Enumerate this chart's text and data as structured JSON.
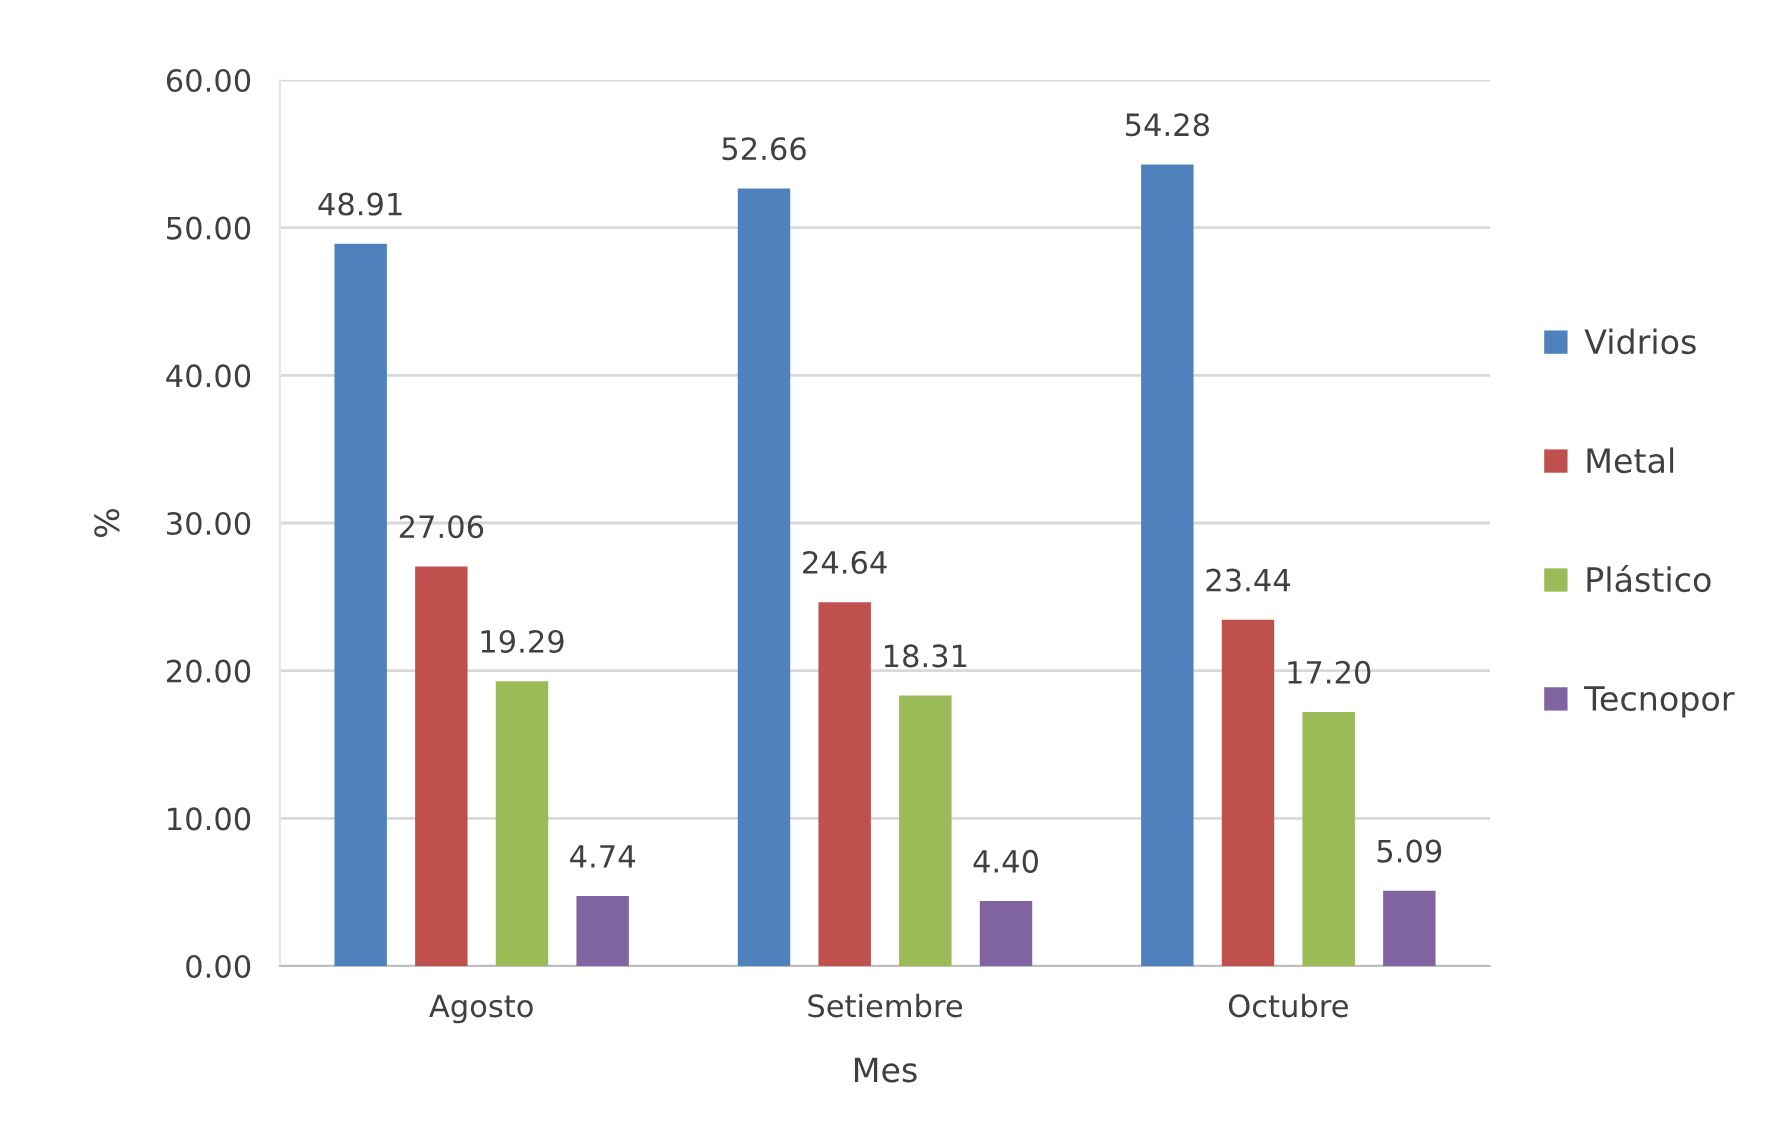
{
  "chart_data": {
    "type": "bar",
    "xlabel": "Mes",
    "ylabel": "%",
    "categories": [
      "Agosto",
      "Setiembre",
      "Octubre"
    ],
    "series": [
      {
        "name": "Vidrios",
        "color": "#4f81bd",
        "values": [
          48.91,
          52.66,
          54.28
        ],
        "value_labels": [
          "48.91",
          "52.66",
          "54.28"
        ]
      },
      {
        "name": "Metal",
        "color": "#c0504d",
        "values": [
          27.06,
          24.64,
          23.44
        ],
        "value_labels": [
          "27.06",
          "24.64",
          "23.44"
        ]
      },
      {
        "name": "Plástico",
        "color": "#9bbb59",
        "values": [
          19.29,
          18.31,
          17.2
        ],
        "value_labels": [
          "19.29",
          "18.31",
          "17.20"
        ]
      },
      {
        "name": "Tecnopor",
        "color": "#8064a2",
        "values": [
          4.74,
          4.4,
          5.09
        ],
        "value_labels": [
          "4.74",
          "4.40",
          "5.09"
        ]
      }
    ],
    "ylim": [
      0,
      60
    ],
    "yticks": [
      {
        "value": 0,
        "label": "0.00"
      },
      {
        "value": 10,
        "label": "10.00"
      },
      {
        "value": 20,
        "label": "20.00"
      },
      {
        "value": 30,
        "label": "30.00"
      },
      {
        "value": 40,
        "label": "40.00"
      },
      {
        "value": 50,
        "label": "50.00"
      },
      {
        "value": 60,
        "label": "60.00"
      }
    ],
    "grid": "y",
    "legend": "right"
  }
}
